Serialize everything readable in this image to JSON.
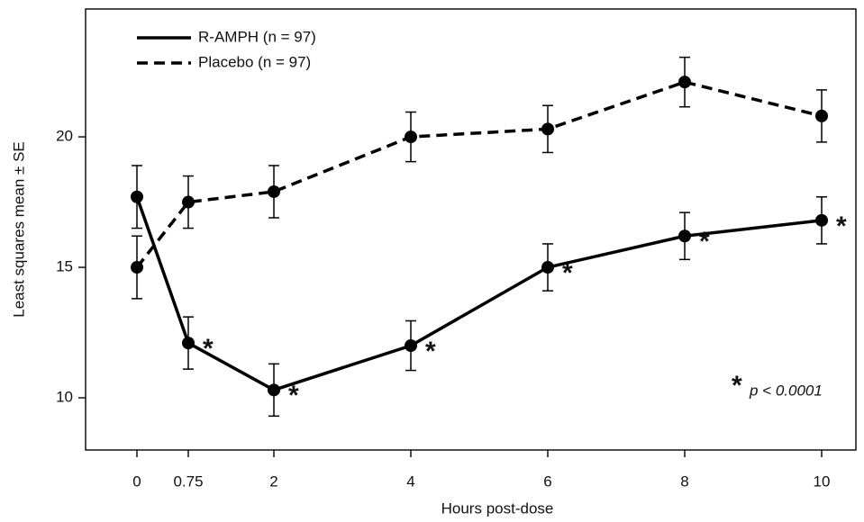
{
  "chart_data": {
    "type": "line",
    "x_label": "Hours post-dose",
    "y_label": "Least squares mean ± SE",
    "x": [
      0,
      0.75,
      2,
      4,
      6,
      8,
      10
    ],
    "xlim": [
      -0.75,
      10.5
    ],
    "xticks": [
      0,
      0.75,
      2,
      4,
      6,
      8,
      10
    ],
    "ylim": [
      8,
      24.9
    ],
    "yticks": [
      10,
      15,
      20
    ],
    "legend": "upper left",
    "series": [
      {
        "name": "R-AMPH (n = 97)",
        "color": "#000000",
        "dashed": false,
        "values": [
          17.7,
          12.1,
          10.3,
          12.0,
          15.0,
          16.2,
          16.8
        ],
        "errors": [
          1.2,
          1.0,
          1.0,
          0.95,
          0.9,
          0.9,
          0.9
        ],
        "point_labels": [
          null,
          "*",
          "*",
          "*",
          "*",
          "*",
          "*"
        ]
      },
      {
        "name": "Placebo (n = 97)",
        "color": "#000000",
        "dashed": true,
        "values": [
          15.0,
          17.5,
          17.9,
          20.0,
          20.3,
          22.1,
          20.8
        ],
        "errors": [
          1.2,
          1.0,
          1.0,
          0.95,
          0.9,
          0.95,
          1.0
        ],
        "point_labels": [
          null,
          null,
          null,
          null,
          null,
          null,
          null
        ]
      }
    ],
    "note_symbol": "*",
    "note": "p < 0.0001"
  }
}
